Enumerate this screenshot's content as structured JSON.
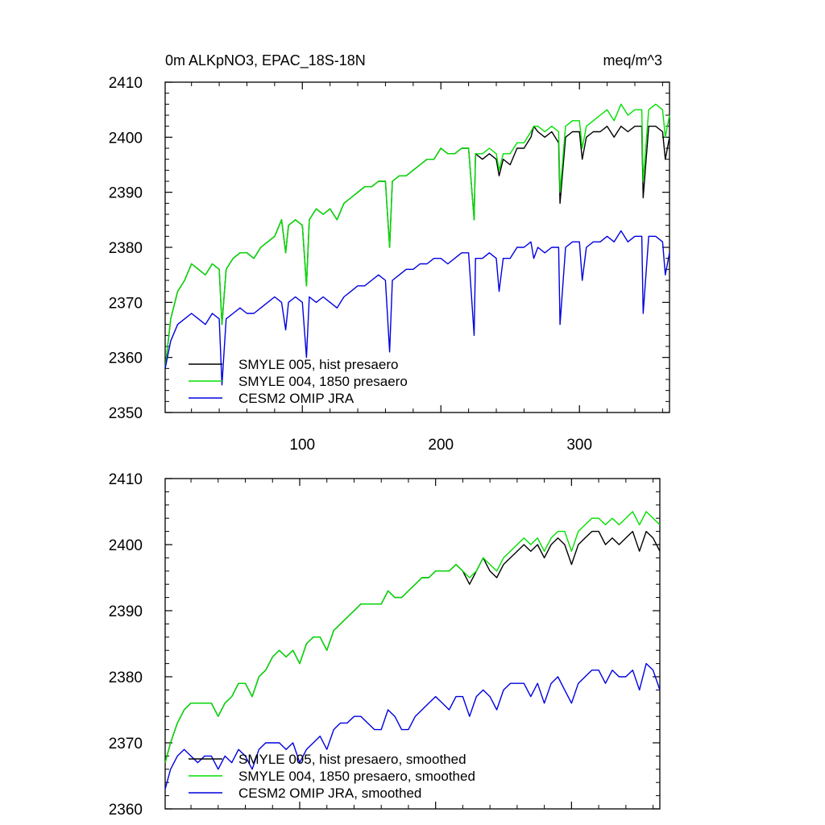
{
  "chart_data": [
    {
      "type": "line",
      "title": "0m ALKpNO3, EPAC_18S-18N",
      "units": "meq/m^3",
      "xlim": [
        1,
        365
      ],
      "ylim": [
        2350,
        2410
      ],
      "xticks": [
        100,
        200,
        300
      ],
      "yticks": [
        2350,
        2360,
        2370,
        2380,
        2390,
        2400,
        2410
      ],
      "xtick_labels_shown": true,
      "grid": false,
      "legend_position": "bottom-left",
      "series": [
        {
          "name": "SMYLE 005, hist presaero",
          "color": "#000000",
          "x": [
            1,
            5,
            10,
            15,
            20,
            25,
            30,
            35,
            40,
            42,
            45,
            50,
            55,
            60,
            65,
            70,
            75,
            80,
            85,
            88,
            90,
            95,
            100,
            103,
            105,
            110,
            115,
            120,
            125,
            130,
            135,
            140,
            145,
            150,
            155,
            160,
            163,
            165,
            170,
            175,
            180,
            185,
            190,
            195,
            200,
            205,
            210,
            215,
            220,
            224,
            225,
            230,
            235,
            240,
            242,
            245,
            250,
            255,
            260,
            265,
            267,
            270,
            275,
            280,
            285,
            286,
            290,
            295,
            300,
            302,
            305,
            310,
            315,
            320,
            325,
            330,
            335,
            340,
            345,
            346,
            350,
            355,
            360,
            362,
            365
          ],
          "y": [
            2358,
            2367,
            2372,
            2374,
            2377,
            2376,
            2375,
            2377,
            2376,
            2366,
            2376,
            2378,
            2379,
            2379,
            2378,
            2380,
            2381,
            2382,
            2385,
            2379,
            2384,
            2385,
            2384,
            2373,
            2385,
            2387,
            2386,
            2387,
            2385,
            2388,
            2389,
            2390,
            2391,
            2391,
            2392,
            2392,
            2380,
            2392,
            2393,
            2393,
            2394,
            2395,
            2396,
            2396,
            2398,
            2397,
            2397,
            2398,
            2398,
            2385,
            2397,
            2396,
            2397,
            2396,
            2393,
            2396,
            2395,
            2398,
            2398,
            2400,
            2402,
            2401,
            2400,
            2401,
            2399,
            2388,
            2400,
            2401,
            2401,
            2396,
            2400,
            2401,
            2401,
            2402,
            2400,
            2402,
            2401,
            2402,
            2402,
            2389,
            2402,
            2402,
            2401,
            2396,
            2400
          ]
        },
        {
          "name": "SMYLE 004, 1850 presaero",
          "color": "#00e000",
          "x": [
            1,
            5,
            10,
            15,
            20,
            25,
            30,
            35,
            40,
            42,
            45,
            50,
            55,
            60,
            65,
            70,
            75,
            80,
            85,
            88,
            90,
            95,
            100,
            103,
            105,
            110,
            115,
            120,
            125,
            130,
            135,
            140,
            145,
            150,
            155,
            160,
            163,
            165,
            170,
            175,
            180,
            185,
            190,
            195,
            200,
            205,
            210,
            215,
            220,
            224,
            225,
            230,
            235,
            240,
            242,
            245,
            250,
            255,
            260,
            265,
            267,
            270,
            275,
            280,
            285,
            286,
            290,
            295,
            300,
            302,
            305,
            310,
            315,
            320,
            325,
            330,
            335,
            340,
            345,
            346,
            350,
            355,
            360,
            362,
            365
          ],
          "y": [
            2358,
            2367,
            2372,
            2374,
            2377,
            2376,
            2375,
            2377,
            2376,
            2366,
            2376,
            2378,
            2379,
            2379,
            2378,
            2380,
            2381,
            2382,
            2385,
            2379,
            2384,
            2385,
            2384,
            2373,
            2385,
            2387,
            2386,
            2387,
            2385,
            2388,
            2389,
            2390,
            2391,
            2391,
            2392,
            2392,
            2380,
            2392,
            2393,
            2393,
            2394,
            2395,
            2396,
            2396,
            2398,
            2397,
            2397,
            2398,
            2398,
            2385,
            2397,
            2397,
            2398,
            2397,
            2394,
            2397,
            2397,
            2399,
            2399,
            2401,
            2402,
            2402,
            2401,
            2402,
            2401,
            2390,
            2402,
            2403,
            2403,
            2398,
            2402,
            2403,
            2404,
            2405,
            2403,
            2406,
            2404,
            2405,
            2405,
            2392,
            2405,
            2406,
            2405,
            2400,
            2404
          ]
        },
        {
          "name": "CESM2 OMIP JRA",
          "color": "#0000e0",
          "x": [
            1,
            5,
            10,
            15,
            20,
            25,
            30,
            35,
            40,
            42,
            45,
            50,
            55,
            60,
            65,
            70,
            75,
            80,
            85,
            88,
            90,
            95,
            100,
            103,
            105,
            110,
            115,
            120,
            125,
            130,
            135,
            140,
            145,
            150,
            155,
            160,
            163,
            165,
            170,
            175,
            180,
            185,
            190,
            195,
            200,
            205,
            210,
            215,
            220,
            224,
            225,
            230,
            235,
            240,
            242,
            245,
            250,
            255,
            260,
            265,
            267,
            270,
            275,
            280,
            285,
            286,
            290,
            295,
            300,
            302,
            305,
            310,
            315,
            320,
            325,
            330,
            335,
            340,
            345,
            346,
            350,
            355,
            360,
            362,
            365
          ],
          "y": [
            2358,
            2363,
            2366,
            2367,
            2368,
            2367,
            2366,
            2368,
            2367,
            2355,
            2367,
            2368,
            2369,
            2368,
            2368,
            2369,
            2370,
            2371,
            2370,
            2365,
            2370,
            2371,
            2370,
            2360,
            2371,
            2370,
            2371,
            2370,
            2369,
            2371,
            2372,
            2373,
            2373,
            2374,
            2375,
            2374,
            2361,
            2374,
            2375,
            2376,
            2376,
            2377,
            2377,
            2378,
            2378,
            2377,
            2378,
            2379,
            2379,
            2364,
            2378,
            2378,
            2379,
            2378,
            2372,
            2378,
            2378,
            2380,
            2380,
            2381,
            2378,
            2380,
            2379,
            2380,
            2380,
            2366,
            2380,
            2381,
            2381,
            2374,
            2380,
            2381,
            2381,
            2382,
            2381,
            2383,
            2381,
            2382,
            2382,
            2368,
            2382,
            2382,
            2381,
            2375,
            2379
          ]
        }
      ]
    },
    {
      "type": "line",
      "title": "",
      "units": "",
      "xlim": [
        1,
        365
      ],
      "ylim": [
        2360,
        2410
      ],
      "xticks": [
        100,
        200,
        300
      ],
      "yticks": [
        2360,
        2370,
        2380,
        2390,
        2400,
        2410
      ],
      "xtick_labels_shown": false,
      "grid": false,
      "legend_position": "bottom-left",
      "series": [
        {
          "name": "SMYLE 005, hist presaero, smoothed",
          "color": "#000000",
          "x": [
            1,
            5,
            10,
            15,
            20,
            25,
            30,
            35,
            40,
            45,
            50,
            55,
            60,
            65,
            70,
            75,
            80,
            85,
            90,
            95,
            100,
            105,
            110,
            115,
            120,
            125,
            130,
            135,
            140,
            145,
            150,
            155,
            160,
            165,
            170,
            175,
            180,
            185,
            190,
            195,
            200,
            205,
            210,
            215,
            220,
            225,
            230,
            235,
            240,
            245,
            250,
            255,
            260,
            265,
            270,
            275,
            280,
            285,
            290,
            295,
            300,
            305,
            310,
            315,
            320,
            325,
            330,
            335,
            340,
            345,
            350,
            355,
            360,
            365
          ],
          "y": [
            2367,
            2370,
            2373,
            2375,
            2376,
            2376,
            2376,
            2376,
            2374,
            2376,
            2377,
            2379,
            2379,
            2377,
            2380,
            2381,
            2383,
            2384,
            2383,
            2384,
            2382,
            2385,
            2386,
            2386,
            2384,
            2387,
            2388,
            2389,
            2390,
            2391,
            2391,
            2391,
            2391,
            2393,
            2392,
            2392,
            2393,
            2394,
            2395,
            2395,
            2396,
            2396,
            2396,
            2397,
            2396,
            2394,
            2396,
            2398,
            2396,
            2395,
            2397,
            2398,
            2399,
            2400,
            2399,
            2400,
            2398,
            2400,
            2401,
            2400,
            2397,
            2400,
            2401,
            2402,
            2402,
            2400,
            2401,
            2400,
            2401,
            2402,
            2399,
            2402,
            2401,
            2399
          ]
        },
        {
          "name": "SMYLE 004, 1850 presaero, smoothed",
          "color": "#00e000",
          "x": [
            1,
            5,
            10,
            15,
            20,
            25,
            30,
            35,
            40,
            45,
            50,
            55,
            60,
            65,
            70,
            75,
            80,
            85,
            90,
            95,
            100,
            105,
            110,
            115,
            120,
            125,
            130,
            135,
            140,
            145,
            150,
            155,
            160,
            165,
            170,
            175,
            180,
            185,
            190,
            195,
            200,
            205,
            210,
            215,
            220,
            225,
            230,
            235,
            240,
            245,
            250,
            255,
            260,
            265,
            270,
            275,
            280,
            285,
            290,
            295,
            300,
            305,
            310,
            315,
            320,
            325,
            330,
            335,
            340,
            345,
            350,
            355,
            360,
            365
          ],
          "y": [
            2367,
            2370,
            2373,
            2375,
            2376,
            2376,
            2376,
            2376,
            2374,
            2376,
            2377,
            2379,
            2379,
            2377,
            2380,
            2381,
            2383,
            2384,
            2383,
            2384,
            2382,
            2385,
            2386,
            2386,
            2384,
            2387,
            2388,
            2389,
            2390,
            2391,
            2391,
            2391,
            2391,
            2393,
            2392,
            2392,
            2393,
            2394,
            2395,
            2395,
            2396,
            2396,
            2396,
            2397,
            2396,
            2395,
            2396,
            2398,
            2397,
            2396,
            2398,
            2399,
            2400,
            2401,
            2400,
            2401,
            2399,
            2401,
            2402,
            2402,
            2399,
            2402,
            2403,
            2404,
            2404,
            2403,
            2404,
            2403,
            2404,
            2405,
            2403,
            2405,
            2404,
            2403
          ]
        },
        {
          "name": "CESM2 OMIP JRA, smoothed",
          "color": "#0000e0",
          "x": [
            1,
            5,
            10,
            15,
            20,
            25,
            30,
            35,
            40,
            45,
            50,
            55,
            60,
            65,
            70,
            75,
            80,
            85,
            90,
            95,
            100,
            105,
            110,
            115,
            120,
            125,
            130,
            135,
            140,
            145,
            150,
            155,
            160,
            165,
            170,
            175,
            180,
            185,
            190,
            195,
            200,
            205,
            210,
            215,
            220,
            225,
            230,
            235,
            240,
            245,
            250,
            255,
            260,
            265,
            270,
            275,
            280,
            285,
            290,
            295,
            300,
            305,
            310,
            315,
            320,
            325,
            330,
            335,
            340,
            345,
            350,
            355,
            360,
            365
          ],
          "y": [
            2363,
            2366,
            2368,
            2369,
            2368,
            2367,
            2368,
            2368,
            2366,
            2368,
            2367,
            2369,
            2368,
            2366,
            2369,
            2370,
            2370,
            2370,
            2369,
            2370,
            2367,
            2369,
            2370,
            2371,
            2369,
            2372,
            2373,
            2373,
            2374,
            2374,
            2373,
            2372,
            2372,
            2375,
            2374,
            2372,
            2372,
            2374,
            2375,
            2376,
            2377,
            2376,
            2375,
            2377,
            2377,
            2374,
            2377,
            2378,
            2377,
            2375,
            2378,
            2379,
            2379,
            2379,
            2377,
            2379,
            2376,
            2379,
            2380,
            2378,
            2376,
            2379,
            2380,
            2381,
            2381,
            2379,
            2381,
            2380,
            2380,
            2381,
            2378,
            2382,
            2381,
            2378
          ]
        }
      ]
    }
  ]
}
